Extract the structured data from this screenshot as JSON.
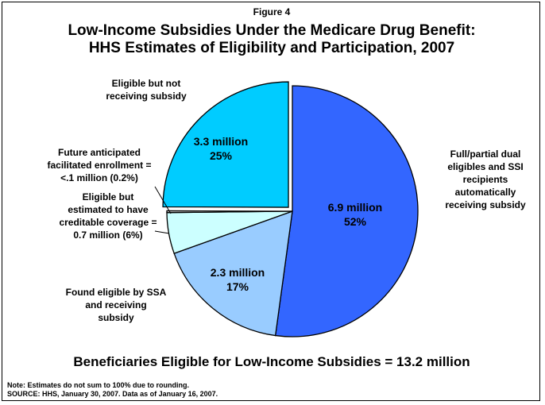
{
  "figure_label": "Figure 4",
  "title_line1": "Low-Income Subsidies Under the Medicare Drug Benefit:",
  "title_line2": "HHS Estimates of Eligibility and Participation, 2007",
  "footer": "Beneficiaries Eligible for Low-Income Subsidies = 13.2 million",
  "note": "Note: Estimates do not sum to 100% due to rounding.",
  "source": "SOURCE: HHS, January 30, 2007.  Data as of January 16, 2007.",
  "chart_data": {
    "type": "pie",
    "unit": "million",
    "total_label": "13.2 million",
    "slices": [
      {
        "name": "Full/partial dual eligibles and SSI recipients automatically receiving subsidy",
        "label_lines": [
          "Full/partial dual",
          "eligibles and SSI",
          "recipients",
          "automatically",
          "receiving subsidy"
        ],
        "value": 6.9,
        "percent": 52,
        "value_label": "6.9 million",
        "percent_label": "52%",
        "color": "#3366ff",
        "exploded": false
      },
      {
        "name": "Found eligible by SSA and receiving subsidy",
        "label_lines": [
          "Found eligible by SSA",
          "and receiving",
          "subsidy"
        ],
        "value": 2.3,
        "percent": 17,
        "value_label": "2.3 million",
        "percent_label": "17%",
        "color": "#99ccff",
        "exploded": false
      },
      {
        "name": "Eligible but estimated to have creditable coverage = 0.7 million (6%)",
        "label_lines": [
          "Eligible but",
          "estimated to have",
          "creditable coverage =",
          "0.7 million (6%)"
        ],
        "value": 0.7,
        "percent": 6,
        "color": "#ccffff",
        "exploded": false
      },
      {
        "name": "Future anticipated facilitated enrollment = <.1 million (0.2%)",
        "label_lines": [
          "Future anticipated",
          "facilitated enrollment =",
          "<.1 million (0.2%)"
        ],
        "value": 0.03,
        "percent": 0.2,
        "color": "#ffffff",
        "exploded": false
      },
      {
        "name": "Eligible but not receiving subsidy",
        "label_lines": [
          "Eligible but not",
          "receiving subsidy"
        ],
        "value": 3.3,
        "percent": 25,
        "value_label": "3.3 million",
        "percent_label": "25%",
        "color": "#00ccff",
        "exploded": true
      }
    ]
  }
}
